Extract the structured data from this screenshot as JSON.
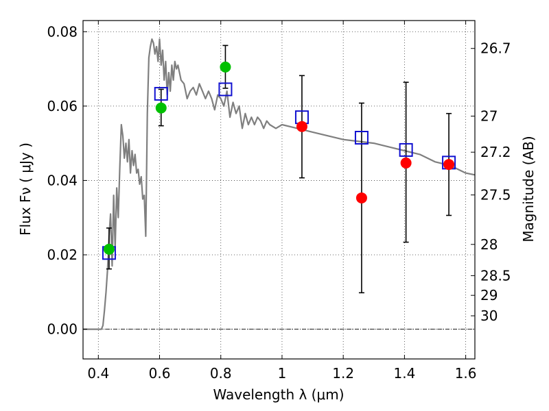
{
  "chart_data": {
    "type": "scatter",
    "xlabel": "Wavelength  λ (μm)",
    "ylabel": "Flux  Fν  ( μJy )",
    "y2label": "Magnitude (AB)",
    "xlim": [
      0.35,
      1.63
    ],
    "ylim": [
      -0.008,
      0.083
    ],
    "x_ticks": [
      0.4,
      0.6,
      0.8,
      1.0,
      1.2,
      1.4,
      1.6
    ],
    "x_tick_labels": [
      "0.4",
      "0.6",
      "0.8",
      "1",
      "1.2",
      "1.4",
      "1.6"
    ],
    "y_ticks": [
      0.0,
      0.02,
      0.04,
      0.06,
      0.08
    ],
    "y_tick_labels": [
      "0.00",
      "0.02",
      "0.04",
      "0.06",
      "0.08"
    ],
    "y2_ticks": [
      {
        "label": "26.7",
        "flux": 0.0755
      },
      {
        "label": "27",
        "flux": 0.0573
      },
      {
        "label": "27.2",
        "flux": 0.0476
      },
      {
        "label": "27.5",
        "flux": 0.0361
      },
      {
        "label": "28",
        "flux": 0.0228
      },
      {
        "label": "28.5",
        "flux": 0.0144
      },
      {
        "label": "29",
        "flux": 0.0091
      },
      {
        "label": "30",
        "flux": 0.0036
      }
    ],
    "grid": true,
    "zero_line": true,
    "model_curve": {
      "color": "#7f7f7f",
      "x": [
        0.35,
        0.4,
        0.41,
        0.415,
        0.42,
        0.425,
        0.43,
        0.435,
        0.44,
        0.445,
        0.45,
        0.455,
        0.46,
        0.465,
        0.47,
        0.475,
        0.48,
        0.485,
        0.49,
        0.495,
        0.5,
        0.505,
        0.51,
        0.515,
        0.52,
        0.525,
        0.53,
        0.535,
        0.54,
        0.545,
        0.55,
        0.555,
        0.56,
        0.565,
        0.57,
        0.575,
        0.58,
        0.585,
        0.59,
        0.595,
        0.6,
        0.605,
        0.61,
        0.615,
        0.62,
        0.625,
        0.63,
        0.635,
        0.64,
        0.645,
        0.65,
        0.655,
        0.66,
        0.67,
        0.68,
        0.69,
        0.7,
        0.71,
        0.72,
        0.73,
        0.74,
        0.75,
        0.76,
        0.77,
        0.78,
        0.79,
        0.8,
        0.81,
        0.82,
        0.83,
        0.84,
        0.85,
        0.86,
        0.87,
        0.88,
        0.89,
        0.9,
        0.91,
        0.92,
        0.93,
        0.94,
        0.95,
        0.96,
        0.98,
        1.0,
        1.05,
        1.1,
        1.15,
        1.2,
        1.25,
        1.3,
        1.35,
        1.4,
        1.45,
        1.5,
        1.55,
        1.6,
        1.63
      ],
      "y": [
        0.0,
        0.0,
        0.0,
        0.001,
        0.005,
        0.01,
        0.016,
        0.025,
        0.031,
        0.017,
        0.036,
        0.022,
        0.038,
        0.03,
        0.043,
        0.055,
        0.052,
        0.046,
        0.05,
        0.045,
        0.051,
        0.042,
        0.048,
        0.044,
        0.047,
        0.042,
        0.043,
        0.039,
        0.041,
        0.035,
        0.036,
        0.025,
        0.058,
        0.073,
        0.076,
        0.078,
        0.077,
        0.074,
        0.076,
        0.072,
        0.078,
        0.071,
        0.075,
        0.067,
        0.072,
        0.063,
        0.069,
        0.064,
        0.071,
        0.067,
        0.072,
        0.07,
        0.071,
        0.067,
        0.066,
        0.062,
        0.064,
        0.065,
        0.063,
        0.066,
        0.064,
        0.062,
        0.064,
        0.062,
        0.059,
        0.063,
        0.062,
        0.06,
        0.064,
        0.057,
        0.061,
        0.058,
        0.06,
        0.054,
        0.058,
        0.055,
        0.057,
        0.055,
        0.057,
        0.056,
        0.054,
        0.056,
        0.055,
        0.054,
        0.055,
        0.054,
        0.053,
        0.052,
        0.051,
        0.0505,
        0.05,
        0.049,
        0.048,
        0.047,
        0.045,
        0.044,
        0.042,
        0.0415
      ]
    },
    "model_points": {
      "marker": "open-square",
      "color": "#1010d0",
      "x": [
        0.435,
        0.605,
        0.815,
        1.065,
        1.26,
        1.405,
        1.545
      ],
      "y": [
        0.0205,
        0.0633,
        0.0645,
        0.057,
        0.0515,
        0.0482,
        0.0448
      ]
    },
    "observed_points": [
      {
        "x": 0.435,
        "y": 0.0215,
        "err_low": 0.0162,
        "err_high": 0.0272,
        "color": "#00c000"
      },
      {
        "x": 0.605,
        "y": 0.0595,
        "err_low": 0.0547,
        "err_high": 0.0645,
        "color": "#00c000"
      },
      {
        "x": 0.815,
        "y": 0.0705,
        "err_low": 0.0648,
        "err_high": 0.0763,
        "color": "#00c000"
      },
      {
        "x": 1.065,
        "y": 0.0545,
        "err_low": 0.0407,
        "err_high": 0.0682,
        "color": "#ff0000"
      },
      {
        "x": 1.26,
        "y": 0.0353,
        "err_low": 0.0098,
        "err_high": 0.0608,
        "color": "#ff0000"
      },
      {
        "x": 1.405,
        "y": 0.0447,
        "err_low": 0.0234,
        "err_high": 0.0664,
        "color": "#ff0000"
      },
      {
        "x": 1.545,
        "y": 0.0443,
        "err_low": 0.0306,
        "err_high": 0.058,
        "color": "#ff0000"
      }
    ]
  }
}
